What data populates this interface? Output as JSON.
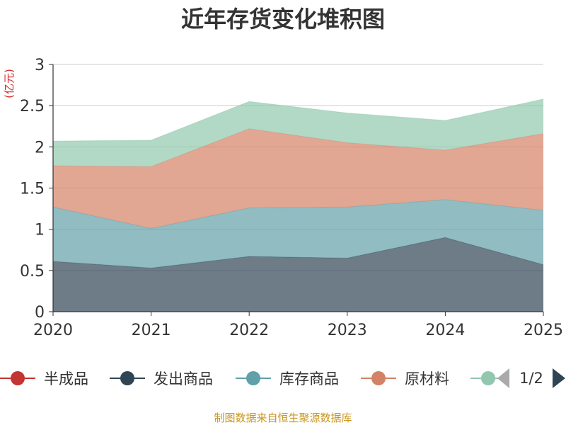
{
  "chart_data": {
    "type": "area",
    "stacked": true,
    "title": "近年存货变化堆积图",
    "ylabel": "(亿元)",
    "xlabel": "",
    "categories": [
      "2020",
      "2021",
      "2022",
      "2023",
      "2024",
      "2025"
    ],
    "ylim": [
      0,
      3
    ],
    "yticks": [
      "0",
      "0.5",
      "1",
      "1.5",
      "2",
      "2.5",
      "3"
    ],
    "grid": true,
    "series": [
      {
        "name": "半成品",
        "color": "#c23531",
        "values": [
          0,
          0,
          0,
          0,
          0,
          0
        ]
      },
      {
        "name": "发出商品",
        "color": "#2f4554",
        "values": [
          0.61,
          0.53,
          0.67,
          0.65,
          0.9,
          0.57
        ]
      },
      {
        "name": "库存商品",
        "color": "#61a0a8",
        "values": [
          0.66,
          0.48,
          0.59,
          0.62,
          0.46,
          0.66
        ]
      },
      {
        "name": "原材料",
        "color": "#d48265",
        "values": [
          0.5,
          0.75,
          0.96,
          0.78,
          0.6,
          0.93
        ]
      },
      {
        "name": "",
        "color": "#91c7ae",
        "values": [
          0.3,
          0.32,
          0.33,
          0.36,
          0.36,
          0.42
        ]
      }
    ],
    "legend": {
      "position": "bottom",
      "page": "1/2"
    },
    "source": "制图数据来自恒生聚源数据库"
  }
}
